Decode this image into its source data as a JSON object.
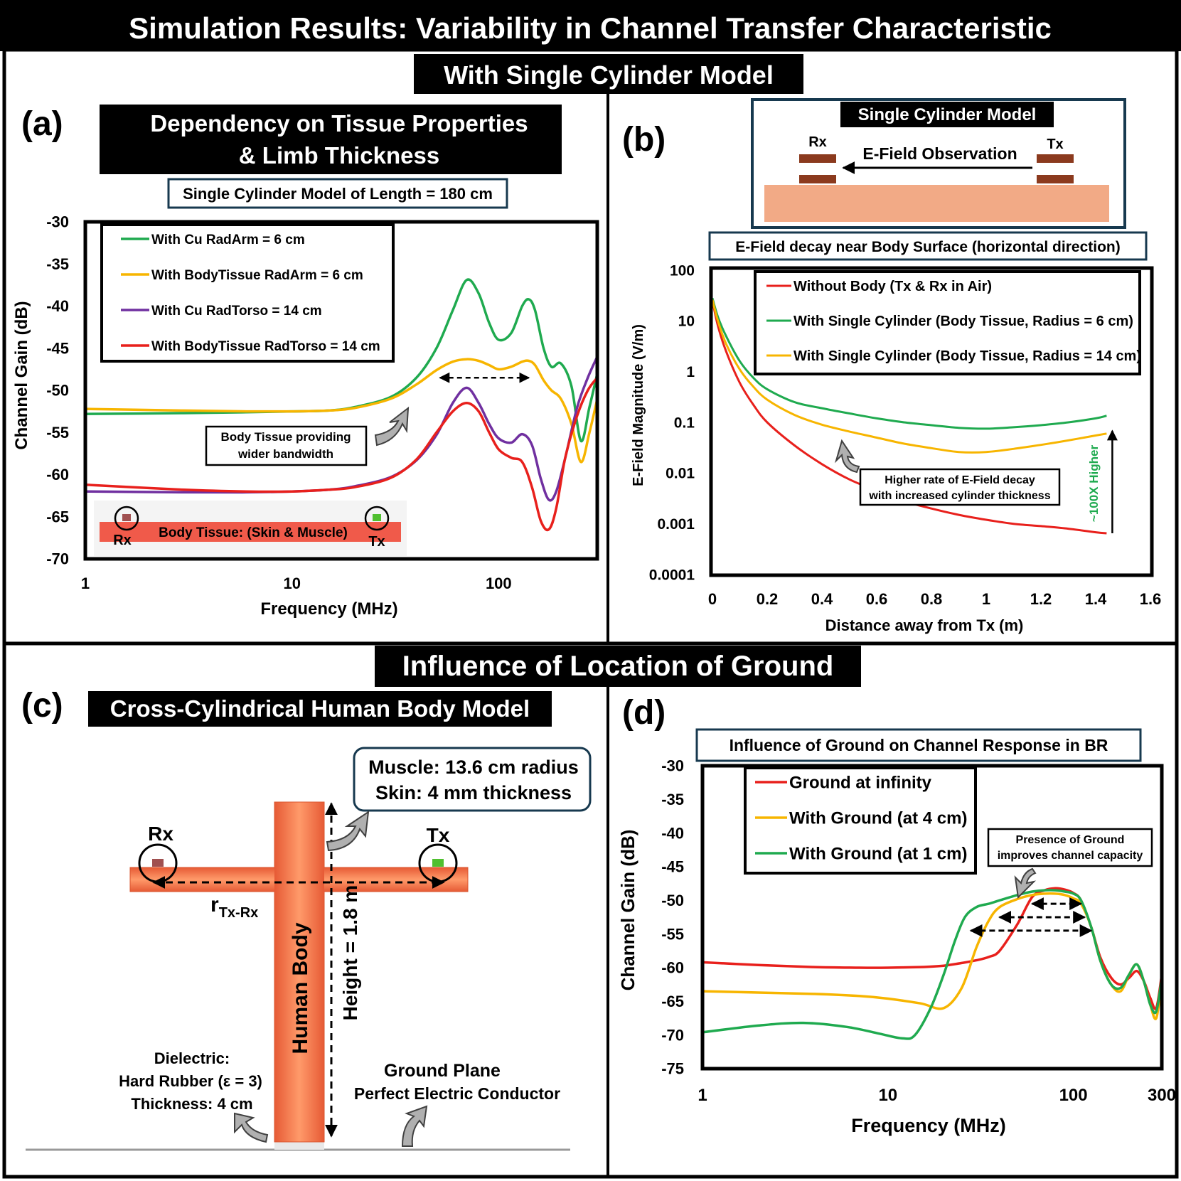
{
  "page": {
    "title": "Simulation Results: Variability in Channel Transfer Characteristic",
    "section_top": "With Single Cylinder Model",
    "section_bottom": "Influence of Location of Ground"
  },
  "panel_a": {
    "tag": "(a)",
    "header_line1": "Dependency on Tissue Properties",
    "header_line2": "& Limb Thickness",
    "subtitle": "Single Cylinder Model of Length = 180 cm",
    "callout_line1": "Body Tissue providing",
    "callout_line2": "wider bandwidth",
    "inset": {
      "rx": "Rx",
      "tx": "Tx",
      "label": "Body Tissue: (Skin & Muscle)"
    }
  },
  "panel_b": {
    "tag": "(b)",
    "model_title": "Single Cylinder Model",
    "rx": "Rx",
    "tx": "Tx",
    "observation": "E-Field Observation",
    "subtitle": "E-Field decay near Body Surface (horizontal direction)",
    "callout_line1": "Higher rate of E-Field decay",
    "callout_line2": "with increased cylinder thickness",
    "ratio_label": "~100X Higher"
  },
  "panel_c": {
    "tag": "(c)",
    "header": "Cross-Cylindrical Human Body Model",
    "info_line1": "Muscle: 13.6 cm radius",
    "info_line2": "Skin: 4 mm thickness",
    "rx": "Rx",
    "tx": "Tx",
    "distance_main": "r",
    "distance_sub": "Tx-Rx",
    "body_label": "Human Body",
    "height_label": "Height = 1.8 m",
    "dielectric_line1": "Dielectric:",
    "dielectric_line2": "Hard Rubber (ε = 3)",
    "dielectric_line3": "Thickness: 4 cm",
    "ground_line1": "Ground Plane",
    "ground_line2": "Perfect Electric Conductor"
  },
  "panel_d": {
    "tag": "(d)",
    "subtitle": "Influence of Ground on Channel Response in BR",
    "callout_line1": "Presence of Ground",
    "callout_line2": "improves channel capacity"
  },
  "chart_data": [
    {
      "id": "a",
      "type": "line",
      "xlabel": "Frequency (MHz)",
      "ylabel": "Channel Gain (dB)",
      "xscale": "log",
      "xlim": [
        1,
        300
      ],
      "ylim": [
        -70,
        -30
      ],
      "xticks": [
        "1",
        "10",
        "100"
      ],
      "yticks": [
        "-30",
        "-35",
        "-40",
        "-45",
        "-50",
        "-55",
        "-60",
        "-65",
        "-70"
      ],
      "legend_position": "top-left",
      "series": [
        {
          "name": "With Cu RadArm = 6 cm",
          "color": "#1faa4f",
          "x": [
            1,
            3,
            6,
            10,
            15,
            20,
            30,
            40,
            50,
            60,
            70,
            80,
            90,
            100,
            115,
            130,
            140,
            150,
            165,
            180,
            200,
            225,
            250,
            275,
            300
          ],
          "y": [
            -52.8,
            -52.7,
            -52.6,
            -52.5,
            -52.4,
            -52.0,
            -50.8,
            -48.5,
            -45.0,
            -40.5,
            -36.9,
            -38.5,
            -42.0,
            -44.0,
            -43.2,
            -40.0,
            -39.2,
            -40.5,
            -45.0,
            -47.2,
            -46.8,
            -49.5,
            -56.0,
            -52.0,
            -48.0
          ]
        },
        {
          "name": "With BodyTissue RadArm = 6 cm",
          "color": "#f7b500",
          "x": [
            1,
            3,
            6,
            10,
            15,
            20,
            30,
            40,
            50,
            60,
            70,
            80,
            90,
            100,
            115,
            130,
            140,
            150,
            165,
            180,
            200,
            225,
            250,
            275,
            300
          ],
          "y": [
            -52.2,
            -52.4,
            -52.5,
            -52.5,
            -52.4,
            -52.1,
            -51.0,
            -49.3,
            -47.6,
            -46.6,
            -46.3,
            -46.5,
            -47.0,
            -47.5,
            -47.2,
            -46.6,
            -46.5,
            -47.0,
            -48.8,
            -50.0,
            -51.0,
            -54.0,
            -58.5,
            -55.0,
            -51.0
          ]
        },
        {
          "name": "With Cu RadTorso = 14 cm",
          "color": "#7030a0",
          "x": [
            1,
            3,
            6,
            10,
            15,
            20,
            30,
            40,
            50,
            60,
            70,
            80,
            90,
            100,
            115,
            130,
            145,
            160,
            175,
            190,
            210,
            240,
            270,
            300
          ],
          "y": [
            -62.0,
            -62.1,
            -62.1,
            -62.0,
            -61.8,
            -61.4,
            -60.3,
            -58.3,
            -55.3,
            -51.5,
            -49.7,
            -51.5,
            -54.0,
            -55.7,
            -56.2,
            -55.2,
            -56.5,
            -60.5,
            -63.0,
            -62.0,
            -58.0,
            -52.0,
            -48.5,
            -46.0
          ]
        },
        {
          "name": "With BodyTissue RadTorso = 14 cm",
          "color": "#e8201c",
          "x": [
            1,
            3,
            6,
            10,
            15,
            20,
            30,
            40,
            50,
            60,
            70,
            80,
            90,
            100,
            115,
            130,
            145,
            160,
            175,
            190,
            210,
            240,
            270,
            300
          ],
          "y": [
            -61.2,
            -61.8,
            -62.0,
            -62.0,
            -61.8,
            -61.5,
            -60.4,
            -58.2,
            -55.0,
            -52.5,
            -51.5,
            -52.5,
            -55.0,
            -57.0,
            -58.0,
            -58.5,
            -61.5,
            -65.5,
            -66.5,
            -64.0,
            -58.0,
            -53.0,
            -50.0,
            -48.5
          ]
        }
      ],
      "annotation": {
        "type": "double-arrow",
        "x": [
          52,
          140
        ],
        "y": -48.5
      }
    },
    {
      "id": "b",
      "type": "line",
      "xlabel": "Distance away from Tx (m)",
      "ylabel": "E-Field Magnitude (V/m)",
      "yscale": "log",
      "xlim": [
        0,
        1.6
      ],
      "ylim": [
        0.0001,
        100
      ],
      "xticks": [
        "0",
        "0.2",
        "0.4",
        "0.6",
        "0.8",
        "1",
        "1.2",
        "1.4",
        "1.6"
      ],
      "yticks": [
        "100",
        "10",
        "1",
        "0.1",
        "0.01",
        "0.001",
        "0.0001"
      ],
      "legend_position": "top-right",
      "series": [
        {
          "name": "Without Body (Tx & Rx in Air)",
          "color": "#e8201c",
          "x": [
            0,
            0.02,
            0.05,
            0.1,
            0.15,
            0.2,
            0.3,
            0.4,
            0.5,
            0.6,
            0.7,
            0.8,
            0.9,
            1.0,
            1.1,
            1.2,
            1.3,
            1.4,
            1.44
          ],
          "y": [
            25,
            8,
            2.5,
            0.6,
            0.22,
            0.1,
            0.035,
            0.015,
            0.0075,
            0.0045,
            0.0028,
            0.002,
            0.0015,
            0.0012,
            0.001,
            0.0009,
            0.0008,
            0.00068,
            0.00065
          ]
        },
        {
          "name": "With Single Cylinder (Body Tissue, Radius = 6 cm)",
          "color": "#1faa4f",
          "x": [
            0,
            0.02,
            0.05,
            0.1,
            0.15,
            0.2,
            0.3,
            0.4,
            0.5,
            0.6,
            0.7,
            0.8,
            0.9,
            1.0,
            1.1,
            1.2,
            1.3,
            1.4,
            1.44
          ],
          "y": [
            28,
            12,
            5,
            1.6,
            0.75,
            0.45,
            0.25,
            0.19,
            0.15,
            0.12,
            0.1,
            0.088,
            0.078,
            0.075,
            0.08,
            0.088,
            0.1,
            0.12,
            0.135
          ]
        },
        {
          "name": "With Single Cylinder (Body Tissue, Radius = 14 cm)",
          "color": "#f7b500",
          "x": [
            0,
            0.02,
            0.05,
            0.1,
            0.15,
            0.2,
            0.3,
            0.4,
            0.5,
            0.6,
            0.7,
            0.8,
            0.9,
            1.0,
            1.1,
            1.2,
            1.3,
            1.4,
            1.44
          ],
          "y": [
            26,
            10,
            3.5,
            1.1,
            0.5,
            0.28,
            0.14,
            0.09,
            0.066,
            0.05,
            0.038,
            0.031,
            0.026,
            0.026,
            0.03,
            0.036,
            0.044,
            0.055,
            0.06
          ]
        }
      ],
      "annotation": {
        "type": "arrow-up",
        "x": 1.44,
        "from": 0.00065,
        "to": 0.06
      }
    },
    {
      "id": "d",
      "type": "line",
      "xlabel": "Frequency (MHz)",
      "ylabel": "Channel Gain (dB)",
      "xscale": "log",
      "xlim": [
        1,
        300
      ],
      "ylim": [
        -75,
        -30
      ],
      "xticks": [
        "1",
        "10",
        "100",
        "300"
      ],
      "yticks": [
        "-30",
        "-35",
        "-40",
        "-45",
        "-50",
        "-55",
        "-60",
        "-65",
        "-70",
        "-75"
      ],
      "legend_position": "top-left",
      "series": [
        {
          "name": "Ground at infinity",
          "color": "#e8201c",
          "x": [
            1,
            2,
            4,
            7,
            10,
            15,
            20,
            25,
            30,
            35,
            40,
            50,
            60,
            70,
            80,
            90,
            100,
            110,
            125,
            140,
            160,
            180,
            200,
            220,
            240,
            260,
            280,
            300
          ],
          "y": [
            -59.2,
            -59.6,
            -59.9,
            -60.0,
            -60.0,
            -59.9,
            -59.7,
            -59.3,
            -58.9,
            -58.4,
            -57.5,
            -53.5,
            -49.5,
            -48.5,
            -48.2,
            -48.4,
            -48.9,
            -50.0,
            -54.0,
            -58.5,
            -61.5,
            -62.5,
            -61.5,
            -60.5,
            -62.0,
            -64.5,
            -66.0,
            -61.0
          ]
        },
        {
          "name": "With Ground (at 4 cm)",
          "color": "#f7b500",
          "x": [
            1,
            2,
            4,
            7,
            10,
            15,
            20,
            25,
            30,
            35,
            40,
            50,
            60,
            70,
            80,
            90,
            100,
            110,
            125,
            140,
            160,
            180,
            200,
            220,
            240,
            260,
            280,
            300
          ],
          "y": [
            -63.5,
            -63.7,
            -63.9,
            -64.2,
            -64.6,
            -65.3,
            -66.0,
            -63.0,
            -57.0,
            -53.0,
            -51.0,
            -49.8,
            -49.2,
            -49.0,
            -49.0,
            -49.2,
            -49.7,
            -50.5,
            -54.0,
            -59.0,
            -62.5,
            -63.5,
            -61.0,
            -59.5,
            -62.0,
            -65.5,
            -67.5,
            -62.0
          ]
        },
        {
          "name": "With Ground (at 1 cm)",
          "color": "#1faa4f",
          "x": [
            1,
            2,
            3.5,
            6,
            9,
            12,
            14,
            17,
            20,
            23,
            26,
            30,
            35,
            40,
            50,
            60,
            70,
            80,
            90,
            100,
            110,
            125,
            140,
            160,
            180,
            200,
            220,
            240,
            260,
            280,
            300
          ],
          "y": [
            -69.6,
            -68.6,
            -68.2,
            -68.8,
            -69.8,
            -70.5,
            -70.0,
            -66.0,
            -61.0,
            -56.0,
            -52.5,
            -51.0,
            -50.5,
            -50.0,
            -49.2,
            -48.7,
            -48.5,
            -48.5,
            -48.7,
            -49.0,
            -50.0,
            -54.0,
            -59.0,
            -62.5,
            -63.0,
            -61.0,
            -59.5,
            -62.0,
            -65.5,
            -66.5,
            -61.5
          ]
        }
      ],
      "annotation": {
        "type": "double-arrows",
        "rows": [
          {
            "x": [
              60,
              110
            ],
            "y": -50.5
          },
          {
            "x": [
              40,
              115
            ],
            "y": -52.5
          },
          {
            "x": [
              28,
              125
            ],
            "y": -54.5
          }
        ]
      }
    }
  ]
}
